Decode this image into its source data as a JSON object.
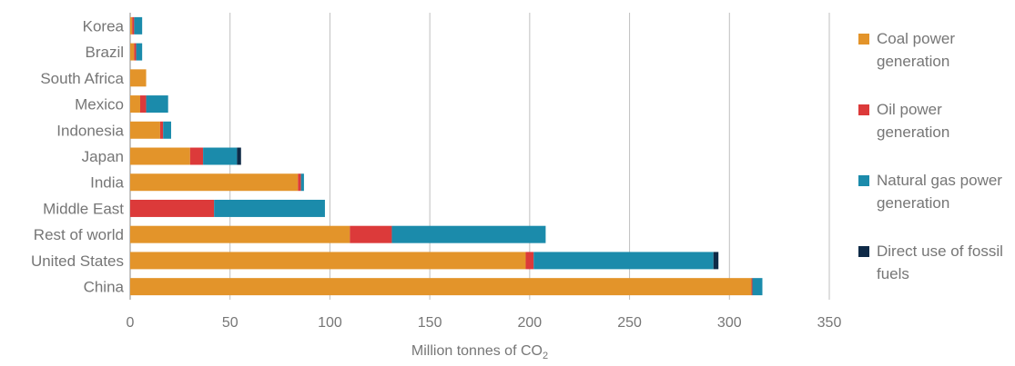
{
  "chart_data": {
    "type": "bar",
    "orientation": "horizontal",
    "stacked": true,
    "categories": [
      "Korea",
      "Brazil",
      "South Africa",
      "Mexico",
      "Indonesia",
      "Japan",
      "India",
      "Middle East",
      "Rest of world",
      "United States",
      "China"
    ],
    "series": [
      {
        "name": "Coal power generation",
        "color": "#E3942A",
        "values": [
          1,
          2,
          8,
          5,
          15,
          30,
          84,
          0,
          110,
          198,
          311
        ]
      },
      {
        "name": "Oil power generation",
        "color": "#DC3A3A",
        "values": [
          1,
          1,
          0,
          3,
          1.5,
          6.5,
          1.5,
          42,
          21,
          4,
          0.5
        ]
      },
      {
        "name": "Natural gas power generation",
        "color": "#1B8BAB",
        "values": [
          4,
          3,
          0,
          11,
          4,
          17,
          1.5,
          55.5,
          77,
          90,
          5
        ]
      },
      {
        "name": "Direct use of fossil fuels",
        "color": "#0F2A47",
        "values": [
          0,
          0,
          0,
          0,
          0,
          2,
          0,
          0,
          0,
          2.5,
          0
        ]
      }
    ],
    "xlim": [
      0,
      350
    ],
    "xticks": [
      "0",
      "50",
      "100",
      "150",
      "200",
      "250",
      "300",
      "350"
    ],
    "xlabel": "Million tonnes of CO",
    "xlabel_subscript": "2",
    "grid": "vertical",
    "legend_position": "right"
  }
}
